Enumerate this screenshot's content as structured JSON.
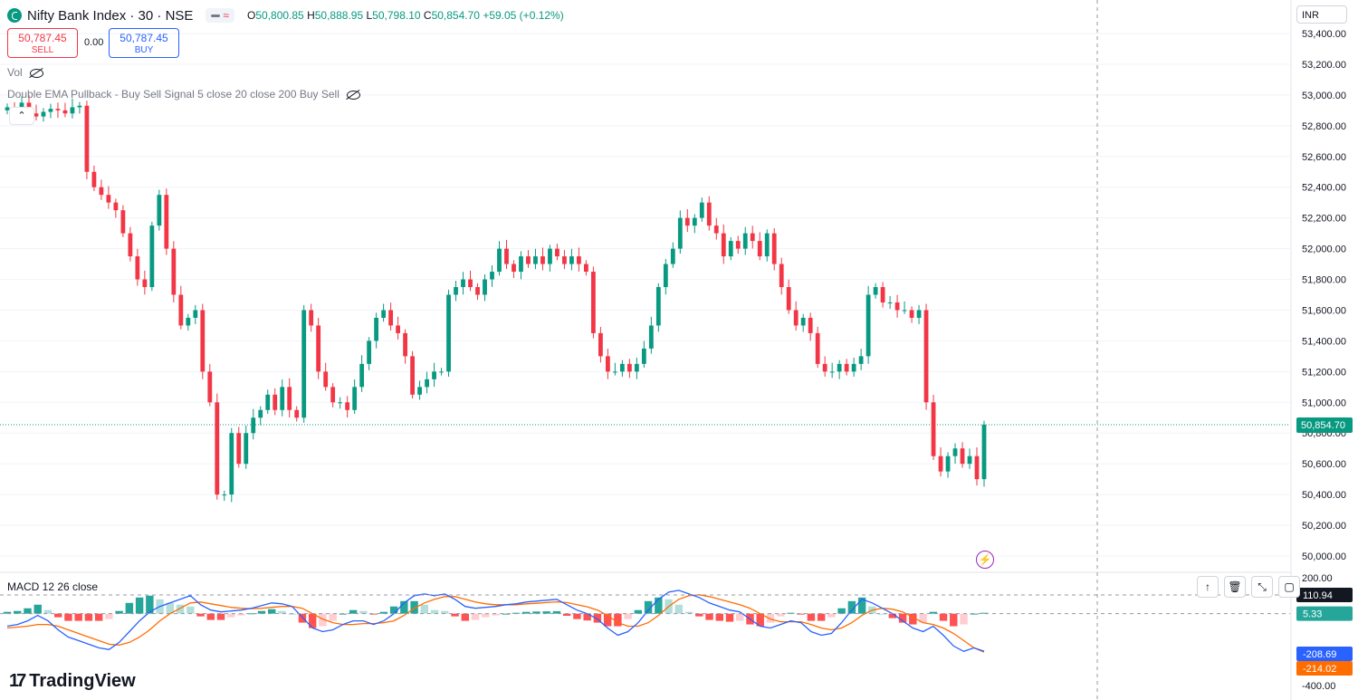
{
  "header": {
    "symbol_title": "Nifty Bank Index · 30 · NSE",
    "ohlc": {
      "o_label": "O",
      "o": "50,800.85",
      "h_label": "H",
      "h": "50,888.95",
      "l_label": "L",
      "l": "50,798.10",
      "c_label": "C",
      "c": "50,854.70",
      "change": "+59.05 (+0.12%)"
    }
  },
  "trade": {
    "sell_price": "50,787.45",
    "sell_label": "SELL",
    "spread": "0.00",
    "buy_price": "50,787.45",
    "buy_label": "BUY"
  },
  "indicators": {
    "vol_label": "Vol",
    "ema_label": "Double EMA Pullback - Buy Sell Signal 5 close 20 close 200 Buy Sell",
    "macd_label": "MACD 12 26 close"
  },
  "currency": "INR",
  "brand": "TradingView",
  "colors": {
    "up": "#089981",
    "down": "#f23645",
    "macd_line": "#2962ff",
    "signal_line": "#ff6d00",
    "hist_up_strong": "#26a69a",
    "hist_up_weak": "#b2dfdb",
    "hist_down_strong": "#ff5252",
    "hist_down_weak": "#ffcdd2"
  },
  "chart_data": [
    {
      "type": "candlestick",
      "ylim": [
        50000,
        53400
      ],
      "y_ticks": [
        "53,400.00",
        "53,200.00",
        "53,000.00",
        "52,800.00",
        "52,600.00",
        "52,400.00",
        "52,200.00",
        "52,000.00",
        "51,800.00",
        "51,600.00",
        "51,400.00",
        "51,200.00",
        "51,000.00",
        "50,800.00",
        "50,600.00",
        "50,400.00",
        "50,200.00",
        "50,000.00"
      ],
      "y_tick_values": [
        53400,
        53200,
        53000,
        52800,
        52600,
        52400,
        52200,
        52000,
        51800,
        51600,
        51400,
        51200,
        51000,
        50800,
        50600,
        50400,
        50200,
        50000
      ],
      "last_price": 50854.7,
      "last_price_label": "50,854.70",
      "close": [
        52920,
        52900,
        52950,
        52880,
        52860,
        52890,
        52910,
        52900,
        52880,
        52920,
        52930,
        52500,
        52400,
        52350,
        52300,
        52250,
        52100,
        51950,
        51800,
        51750,
        52150,
        52350,
        52000,
        51700,
        51500,
        51550,
        51600,
        51200,
        51000,
        50400,
        50400,
        50800,
        50600,
        50800,
        50900,
        50950,
        51050,
        50950,
        51100,
        50950,
        50900,
        51600,
        51500,
        51200,
        51100,
        51000,
        51000,
        50950,
        51100,
        51250,
        51400,
        51550,
        51600,
        51500,
        51450,
        51300,
        51050,
        51100,
        51150,
        51200,
        51200,
        51700,
        51750,
        51800,
        51750,
        51700,
        51800,
        51850,
        52000,
        51900,
        51850,
        51950,
        51900,
        51950,
        51900,
        52000,
        51950,
        51900,
        51950,
        51900,
        51850,
        51450,
        51300,
        51200,
        51200,
        51250,
        51200,
        51250,
        51350,
        51500,
        51750,
        51900,
        52000,
        52200,
        52150,
        52200,
        52300,
        52150,
        52100,
        51950,
        52050,
        52000,
        52100,
        52050,
        51950,
        52100,
        51900,
        51750,
        51600,
        51500,
        51550,
        51450,
        51250,
        51200,
        51200,
        51250,
        51200,
        51250,
        51300,
        51700,
        51750,
        51650,
        51650,
        51600,
        51600,
        51550,
        51600,
        51000,
        50650,
        50550,
        50650,
        50700,
        50600,
        50650,
        50500,
        50855
      ],
      "candles_note": "30-minute candles, values estimated from chart"
    },
    {
      "type": "macd",
      "ylim": [
        -400,
        200
      ],
      "y_ticks": [
        "200.00",
        "-400.00"
      ],
      "y_tick_values": [
        200,
        -400
      ],
      "macd_line_last": "-208.69",
      "signal_line_last": "-214.02",
      "histogram_last": "5.33",
      "crosshair_value": "110.94",
      "macd": [
        -70,
        -60,
        -40,
        -10,
        -40,
        -90,
        -130,
        -150,
        -170,
        -190,
        -200,
        -160,
        -100,
        -40,
        10,
        40,
        60,
        80,
        100,
        50,
        20,
        10,
        15,
        20,
        30,
        45,
        60,
        55,
        40,
        -20,
        -80,
        -100,
        -90,
        -60,
        -40,
        -40,
        -60,
        -40,
        0,
        60,
        100,
        110,
        100,
        110,
        80,
        40,
        30,
        35,
        40,
        50,
        55,
        65,
        70,
        75,
        80,
        50,
        20,
        0,
        -30,
        -80,
        -120,
        -100,
        -50,
        20,
        80,
        120,
        130,
        110,
        90,
        60,
        40,
        20,
        10,
        -30,
        -70,
        -80,
        -60,
        -40,
        -50,
        -100,
        -120,
        -110,
        -50,
        20,
        80,
        60,
        30,
        0,
        -40,
        -80,
        -100,
        -70,
        -120,
        -180,
        -210,
        -190,
        -209
      ],
      "signal": [
        -80,
        -75,
        -70,
        -60,
        -60,
        -70,
        -90,
        -110,
        -130,
        -150,
        -170,
        -175,
        -160,
        -130,
        -90,
        -40,
        0,
        30,
        60,
        65,
        55,
        45,
        35,
        30,
        28,
        30,
        35,
        40,
        40,
        30,
        0,
        -30,
        -50,
        -60,
        -60,
        -55,
        -55,
        -50,
        -40,
        -10,
        30,
        60,
        80,
        95,
        95,
        80,
        65,
        55,
        50,
        50,
        50,
        55,
        58,
        62,
        66,
        62,
        50,
        38,
        20,
        -10,
        -50,
        -70,
        -70,
        -50,
        -10,
        40,
        80,
        100,
        105,
        95,
        80,
        65,
        50,
        30,
        0,
        -30,
        -45,
        -45,
        -45,
        -60,
        -80,
        -90,
        -80,
        -50,
        -10,
        20,
        30,
        25,
        10,
        -20,
        -50,
        -60,
        -80,
        -110,
        -150,
        -190,
        -214
      ],
      "histogram": [
        10,
        15,
        30,
        50,
        20,
        -20,
        -40,
        -40,
        -40,
        -40,
        -30,
        15,
        60,
        90,
        100,
        80,
        60,
        50,
        40,
        -15,
        -35,
        -35,
        -20,
        -10,
        2,
        15,
        25,
        15,
        0,
        -50,
        -80,
        -70,
        -40,
        0,
        20,
        15,
        -5,
        10,
        40,
        70,
        70,
        50,
        20,
        15,
        -15,
        -40,
        -35,
        -20,
        -10,
        0,
        5,
        10,
        12,
        13,
        14,
        -12,
        -30,
        -38,
        -50,
        -70,
        -70,
        -30,
        20,
        70,
        90,
        80,
        50,
        10,
        -15,
        -35,
        -40,
        -45,
        -40,
        -60,
        -70,
        -50,
        -15,
        5,
        -5,
        -40,
        -40,
        -20,
        30,
        70,
        90,
        40,
        0,
        -25,
        -50,
        -60,
        -50,
        10,
        -40,
        -70,
        -60,
        0,
        5
      ]
    }
  ]
}
